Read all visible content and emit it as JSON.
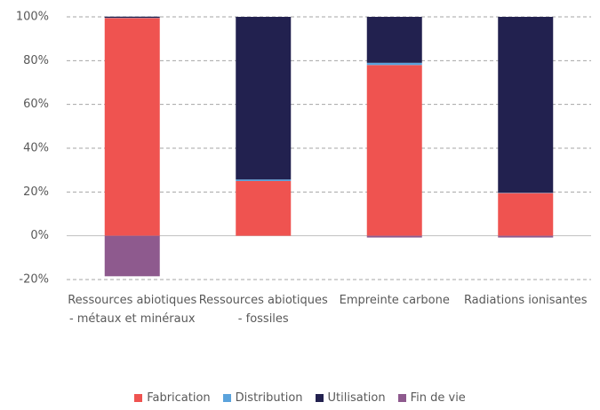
{
  "chart_data": {
    "type": "stacked_bar",
    "categories": [
      "Ressources abiotiques - métaux et minéraux",
      "Ressources abiotiques - fossiles",
      "Empreinte carbone",
      "Radiations ionisantes"
    ],
    "series": [
      {
        "name": "Fabrication",
        "color": "#ef5350",
        "values": [
          99.5,
          25,
          78,
          19.5
        ]
      },
      {
        "name": "Distribution",
        "color": "#5ba3dc",
        "values": [
          0.1,
          0.7,
          1,
          0.2
        ]
      },
      {
        "name": "Utilisation",
        "color": "#22214f",
        "values": [
          0.5,
          74.3,
          21,
          80.3
        ]
      },
      {
        "name": "Fin de vie",
        "color": "#8e5a8e",
        "values": [
          -18.5,
          0,
          -0.8,
          -0.8
        ]
      }
    ],
    "ylim": [
      -20,
      100
    ],
    "yticks": [
      {
        "value": -20,
        "label": "-20%"
      },
      {
        "value": 0,
        "label": "0%"
      },
      {
        "value": 20,
        "label": "20%"
      },
      {
        "value": 40,
        "label": "40%"
      },
      {
        "value": 60,
        "label": "60%"
      },
      {
        "value": 80,
        "label": "80%"
      },
      {
        "value": 100,
        "label": "100%"
      }
    ],
    "grid": true,
    "legend": "bottom"
  }
}
